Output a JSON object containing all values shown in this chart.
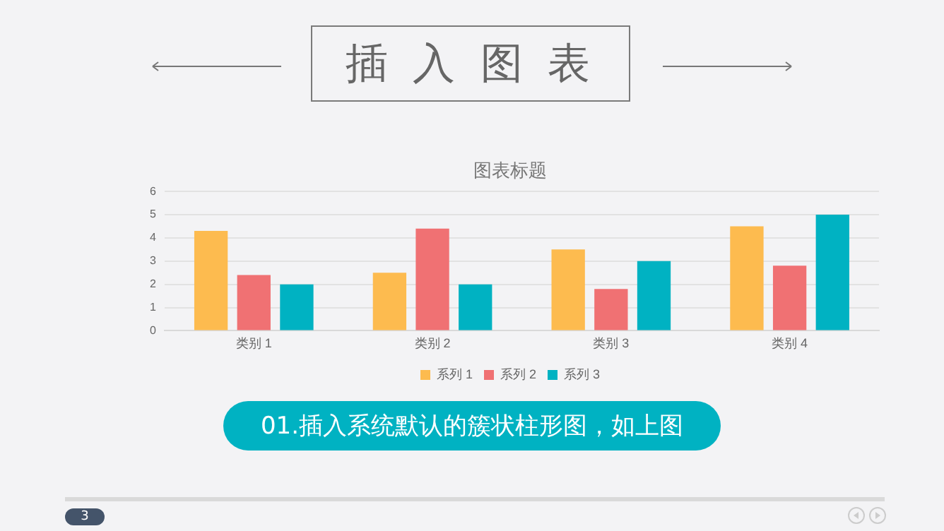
{
  "chart_data": {
    "type": "bar",
    "title": "插 入 图 表",
    "subtitle": "图表标题",
    "categories": [
      "类别 1",
      "类别 2",
      "类别 3",
      "类别 4"
    ],
    "series": [
      {
        "name": "系列 1",
        "color": "#fdbb4f",
        "values": [
          4.3,
          2.5,
          3.5,
          4.5
        ]
      },
      {
        "name": "系列 2",
        "color": "#f07173",
        "values": [
          2.4,
          4.4,
          1.8,
          2.8
        ]
      },
      {
        "name": "系列 3",
        "color": "#00b2c2",
        "values": [
          2,
          2,
          3,
          5
        ]
      }
    ],
    "ylim": [
      0,
      6
    ],
    "yticks": [
      0,
      1,
      2,
      3,
      4,
      5,
      6
    ],
    "grid": "y",
    "legend": "bottom",
    "annotations": [
      "01.插入系统默认的簇状柱形图，如上图",
      "3"
    ]
  }
}
